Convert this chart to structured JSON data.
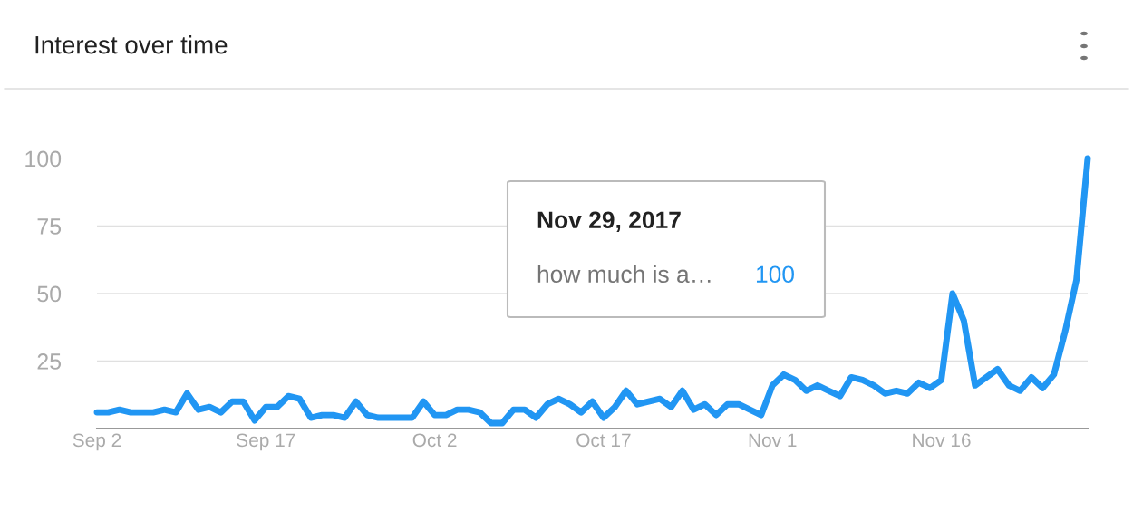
{
  "chart_data": {
    "type": "line",
    "title": "Interest over time",
    "x": [
      "2017-09-02",
      "2017-09-03",
      "2017-09-04",
      "2017-09-05",
      "2017-09-06",
      "2017-09-07",
      "2017-09-08",
      "2017-09-09",
      "2017-09-10",
      "2017-09-11",
      "2017-09-12",
      "2017-09-13",
      "2017-09-14",
      "2017-09-15",
      "2017-09-16",
      "2017-09-17",
      "2017-09-18",
      "2017-09-19",
      "2017-09-20",
      "2017-09-21",
      "2017-09-22",
      "2017-09-23",
      "2017-09-24",
      "2017-09-25",
      "2017-09-26",
      "2017-09-27",
      "2017-09-28",
      "2017-09-29",
      "2017-09-30",
      "2017-10-01",
      "2017-10-02",
      "2017-10-03",
      "2017-10-04",
      "2017-10-05",
      "2017-10-06",
      "2017-10-07",
      "2017-10-08",
      "2017-10-09",
      "2017-10-10",
      "2017-10-11",
      "2017-10-12",
      "2017-10-13",
      "2017-10-14",
      "2017-10-15",
      "2017-10-16",
      "2017-10-17",
      "2017-10-18",
      "2017-10-19",
      "2017-10-20",
      "2017-10-21",
      "2017-10-22",
      "2017-10-23",
      "2017-10-24",
      "2017-10-25",
      "2017-10-26",
      "2017-10-27",
      "2017-10-28",
      "2017-10-29",
      "2017-10-30",
      "2017-10-31",
      "2017-11-01",
      "2017-11-02",
      "2017-11-03",
      "2017-11-04",
      "2017-11-05",
      "2017-11-06",
      "2017-11-07",
      "2017-11-08",
      "2017-11-09",
      "2017-11-10",
      "2017-11-11",
      "2017-11-12",
      "2017-11-13",
      "2017-11-14",
      "2017-11-15",
      "2017-11-16",
      "2017-11-17",
      "2017-11-18",
      "2017-11-19",
      "2017-11-20",
      "2017-11-21",
      "2017-11-22",
      "2017-11-23",
      "2017-11-24",
      "2017-11-25",
      "2017-11-26",
      "2017-11-27",
      "2017-11-28",
      "2017-11-29"
    ],
    "series": [
      {
        "color": "#2196f3",
        "values": [
          6,
          6,
          7,
          6,
          6,
          6,
          7,
          6,
          13,
          7,
          8,
          6,
          10,
          10,
          3,
          8,
          8,
          12,
          11,
          4,
          5,
          5,
          4,
          10,
          5,
          4,
          4,
          4,
          4,
          10,
          5,
          5,
          7,
          7,
          6,
          2,
          2,
          7,
          7,
          4,
          9,
          11,
          9,
          6,
          10,
          4,
          8,
          14,
          9,
          10,
          11,
          8,
          14,
          7,
          9,
          5,
          9,
          9,
          7,
          5,
          16,
          20,
          18,
          14,
          16,
          14,
          12,
          19,
          18,
          16,
          13,
          14,
          13,
          17,
          15,
          18,
          50,
          40,
          16,
          19,
          22,
          16,
          14,
          19,
          15,
          20,
          36,
          55,
          100
        ]
      }
    ],
    "xlim": [
      "2017-09-02",
      "2017-11-29"
    ],
    "xticks": [
      {
        "value": "2017-09-02",
        "label": "Sep 2"
      },
      {
        "value": "2017-09-17",
        "label": "Sep 17"
      },
      {
        "value": "2017-10-02",
        "label": "Oct 2"
      },
      {
        "value": "2017-10-17",
        "label": "Oct 17"
      },
      {
        "value": "2017-11-01",
        "label": "Nov 1"
      },
      {
        "value": "2017-11-16",
        "label": "Nov 16"
      }
    ],
    "ylim": [
      0,
      100
    ],
    "yticks": [
      25,
      50,
      75,
      100
    ],
    "grid": "y",
    "legend": false,
    "line_style": "solid",
    "marker": "none",
    "annotations": [
      "Nov 29, 2017",
      "how much is a…",
      "100"
    ]
  }
}
